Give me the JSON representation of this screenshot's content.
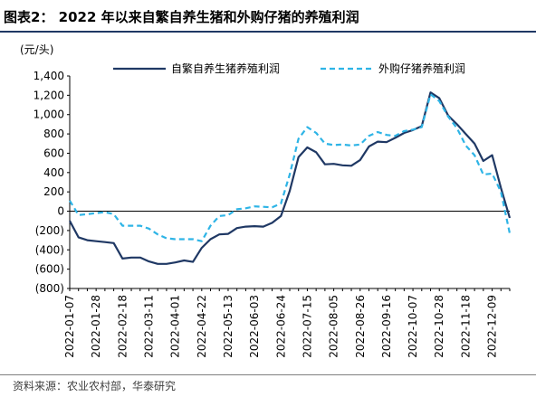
{
  "header": {
    "title": "图表2： 2022 年以来自繁自养生猪和外购仔猪的养殖利润"
  },
  "footer": {
    "source": "资料来源：农业农村部，华泰研究"
  },
  "colors": {
    "title_rule": "#1f3864",
    "series_self": "#1f3864",
    "series_piglet": "#2eb4e6"
  },
  "chart_data": {
    "type": "line",
    "unit_label": "(元/头)",
    "title": "",
    "xlabel": "",
    "ylabel": "",
    "ylim": [
      -800,
      1400
    ],
    "yticks": [
      1400,
      1200,
      1000,
      800,
      600,
      400,
      200,
      0,
      -200,
      -400,
      -600,
      -800
    ],
    "ytick_labels": [
      "1,400",
      "1,200",
      "1,000",
      "800",
      "600",
      "400",
      "200",
      "0",
      "(200)",
      "(400)",
      "(600)",
      "(800)"
    ],
    "grid": false,
    "legend_position": "top",
    "x_tick_labels": [
      "2022-01-07",
      "2022-01-28",
      "2022-02-18",
      "2022-03-11",
      "2022-04-01",
      "2022-04-22",
      "2022-05-13",
      "2022-06-03",
      "2022-06-24",
      "2022-07-15",
      "2022-08-05",
      "2022-08-26",
      "2022-09-16",
      "2022-10-07",
      "2022-10-28",
      "2022-11-18",
      "2022-12-09"
    ],
    "x": [
      "2022-01-07",
      "2022-01-14",
      "2022-01-21",
      "2022-01-28",
      "2022-02-04",
      "2022-02-11",
      "2022-02-18",
      "2022-02-25",
      "2022-03-04",
      "2022-03-11",
      "2022-03-18",
      "2022-03-25",
      "2022-04-01",
      "2022-04-08",
      "2022-04-15",
      "2022-04-22",
      "2022-04-29",
      "2022-05-06",
      "2022-05-13",
      "2022-05-20",
      "2022-05-27",
      "2022-06-03",
      "2022-06-10",
      "2022-06-17",
      "2022-06-24",
      "2022-07-01",
      "2022-07-08",
      "2022-07-15",
      "2022-07-22",
      "2022-07-29",
      "2022-08-05",
      "2022-08-12",
      "2022-08-19",
      "2022-08-26",
      "2022-09-02",
      "2022-09-09",
      "2022-09-16",
      "2022-09-23",
      "2022-09-30",
      "2022-10-07",
      "2022-10-14",
      "2022-10-21",
      "2022-10-28",
      "2022-11-04",
      "2022-11-11",
      "2022-11-18",
      "2022-11-25",
      "2022-12-02",
      "2022-12-09",
      "2022-12-16",
      "2022-12-23"
    ],
    "series": [
      {
        "name": "自繁自养生猪养殖利润",
        "style": "solid",
        "color": "#1f3864",
        "values": [
          -100,
          -270,
          -300,
          -310,
          -320,
          -330,
          -490,
          -480,
          -480,
          -520,
          -545,
          -545,
          -530,
          -510,
          -525,
          -380,
          -290,
          -240,
          -235,
          -175,
          -160,
          -155,
          -160,
          -120,
          -50,
          210,
          560,
          660,
          610,
          485,
          490,
          475,
          470,
          530,
          670,
          720,
          715,
          760,
          810,
          840,
          880,
          1230,
          1170,
          990,
          900,
          800,
          700,
          520,
          580,
          240,
          -70
        ]
      },
      {
        "name": "外购仔猪养殖利润",
        "style": "dashed",
        "color": "#2eb4e6",
        "values": [
          110,
          -40,
          -30,
          -20,
          -10,
          -30,
          -150,
          -150,
          -150,
          -180,
          -240,
          -280,
          -290,
          -290,
          -290,
          -310,
          -150,
          -50,
          -40,
          20,
          30,
          50,
          45,
          40,
          80,
          380,
          750,
          870,
          810,
          700,
          685,
          690,
          680,
          690,
          780,
          820,
          790,
          780,
          830,
          845,
          870,
          1210,
          1140,
          980,
          860,
          680,
          580,
          380,
          390,
          200,
          -230
        ]
      }
    ]
  }
}
